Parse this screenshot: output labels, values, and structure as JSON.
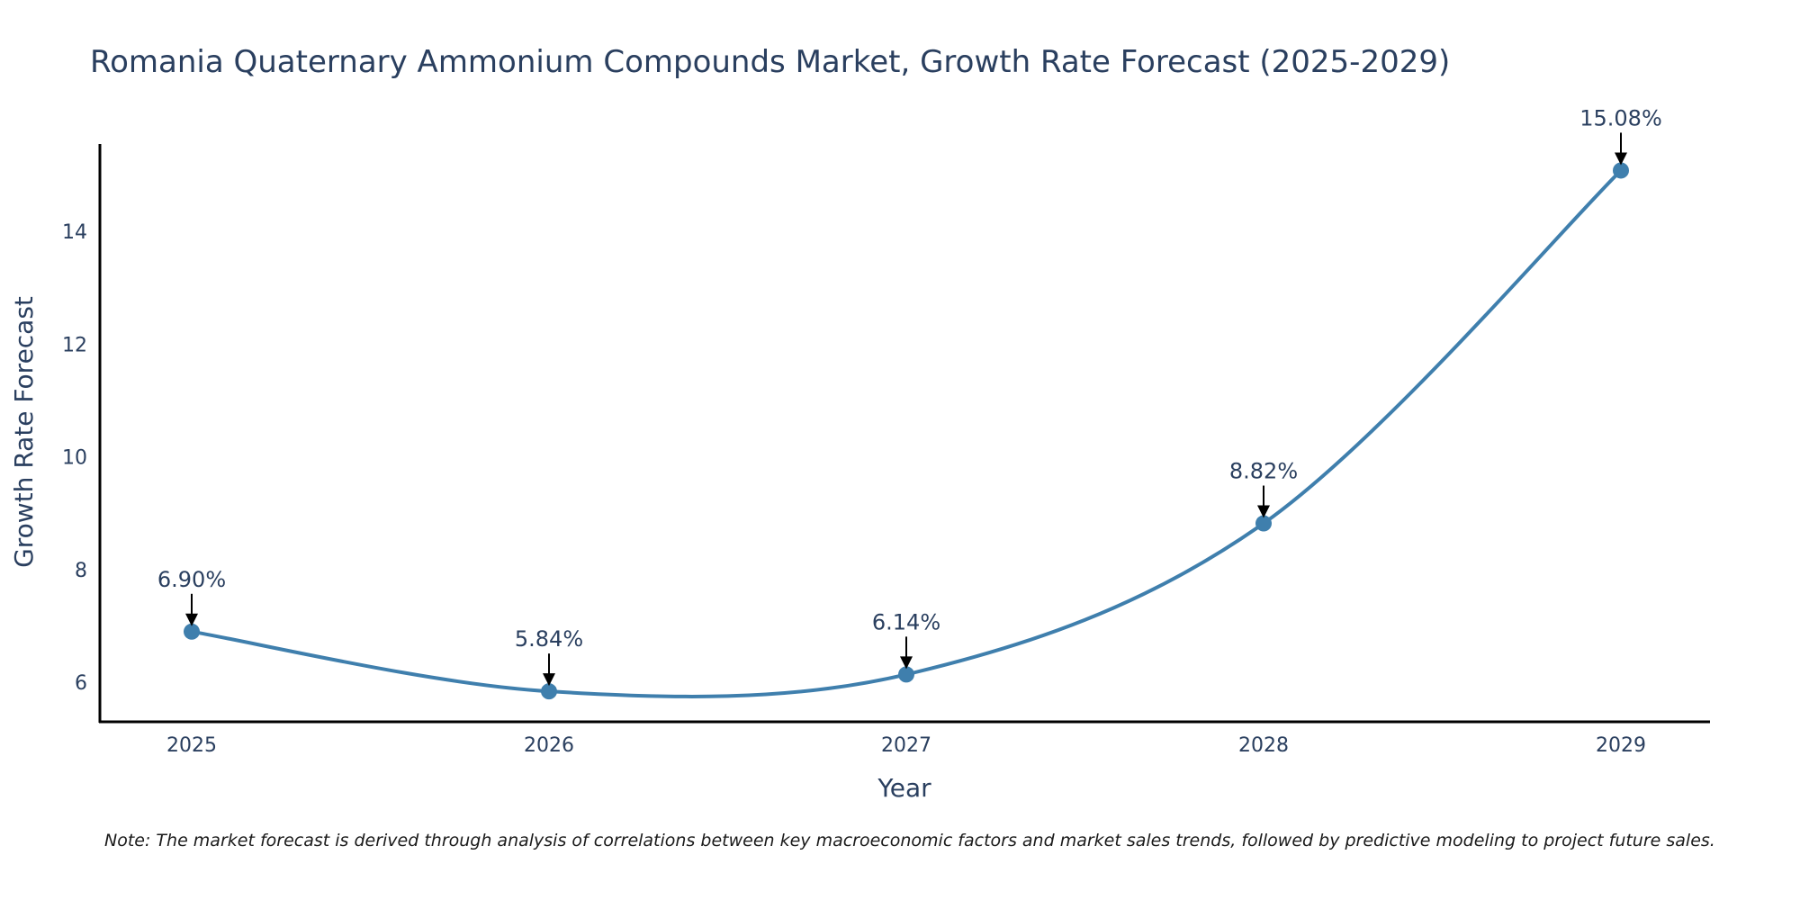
{
  "chart_data": {
    "type": "line",
    "title": "Romania Quaternary Ammonium Compounds Market, Growth Rate Forecast (2025-2029)",
    "xlabel": "Year",
    "ylabel": "Growth Rate Forecast",
    "categories": [
      "2025",
      "2026",
      "2027",
      "2028",
      "2029"
    ],
    "values": [
      6.9,
      5.84,
      6.14,
      8.82,
      15.08
    ],
    "data_labels": [
      "6.90%",
      "5.84%",
      "6.14%",
      "8.82%",
      "15.08%"
    ],
    "yticks": [
      "6",
      "8",
      "10",
      "12",
      "14"
    ],
    "ylim": [
      5.3,
      15.55
    ],
    "grid": false,
    "legend": "none",
    "line_color": "#3f7fad",
    "marker_color": "#3f7fad",
    "arrow_color": "#000000",
    "note": "Note: The market forecast is derived through analysis of correlations between key macroeconomic factors and market sales trends, followed by predictive modeling to project future sales."
  }
}
